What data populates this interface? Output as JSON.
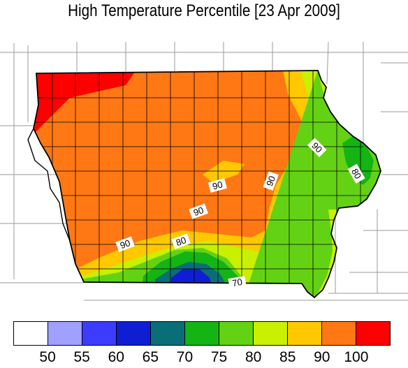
{
  "title": "High Temperature Percentile [23 Apr 2009]",
  "contour_labels": {
    "l90_sw": "90",
    "l80_s": "80",
    "l70_s": "70",
    "l90_mid": "90",
    "l90_c": "90",
    "l90_ce": "90",
    "l90_ne": "90",
    "l80_e": "80"
  },
  "legend": {
    "colors": [
      "#ffffff",
      "#a0a0ff",
      "#3c3cff",
      "#0f1ed2",
      "#0a6e78",
      "#14b414",
      "#64d214",
      "#c8f000",
      "#ffc800",
      "#ff7814",
      "#ff0000"
    ],
    "ticks": [
      "50",
      "55",
      "60",
      "65",
      "70",
      "75",
      "80",
      "85",
      "90",
      "100"
    ]
  }
}
